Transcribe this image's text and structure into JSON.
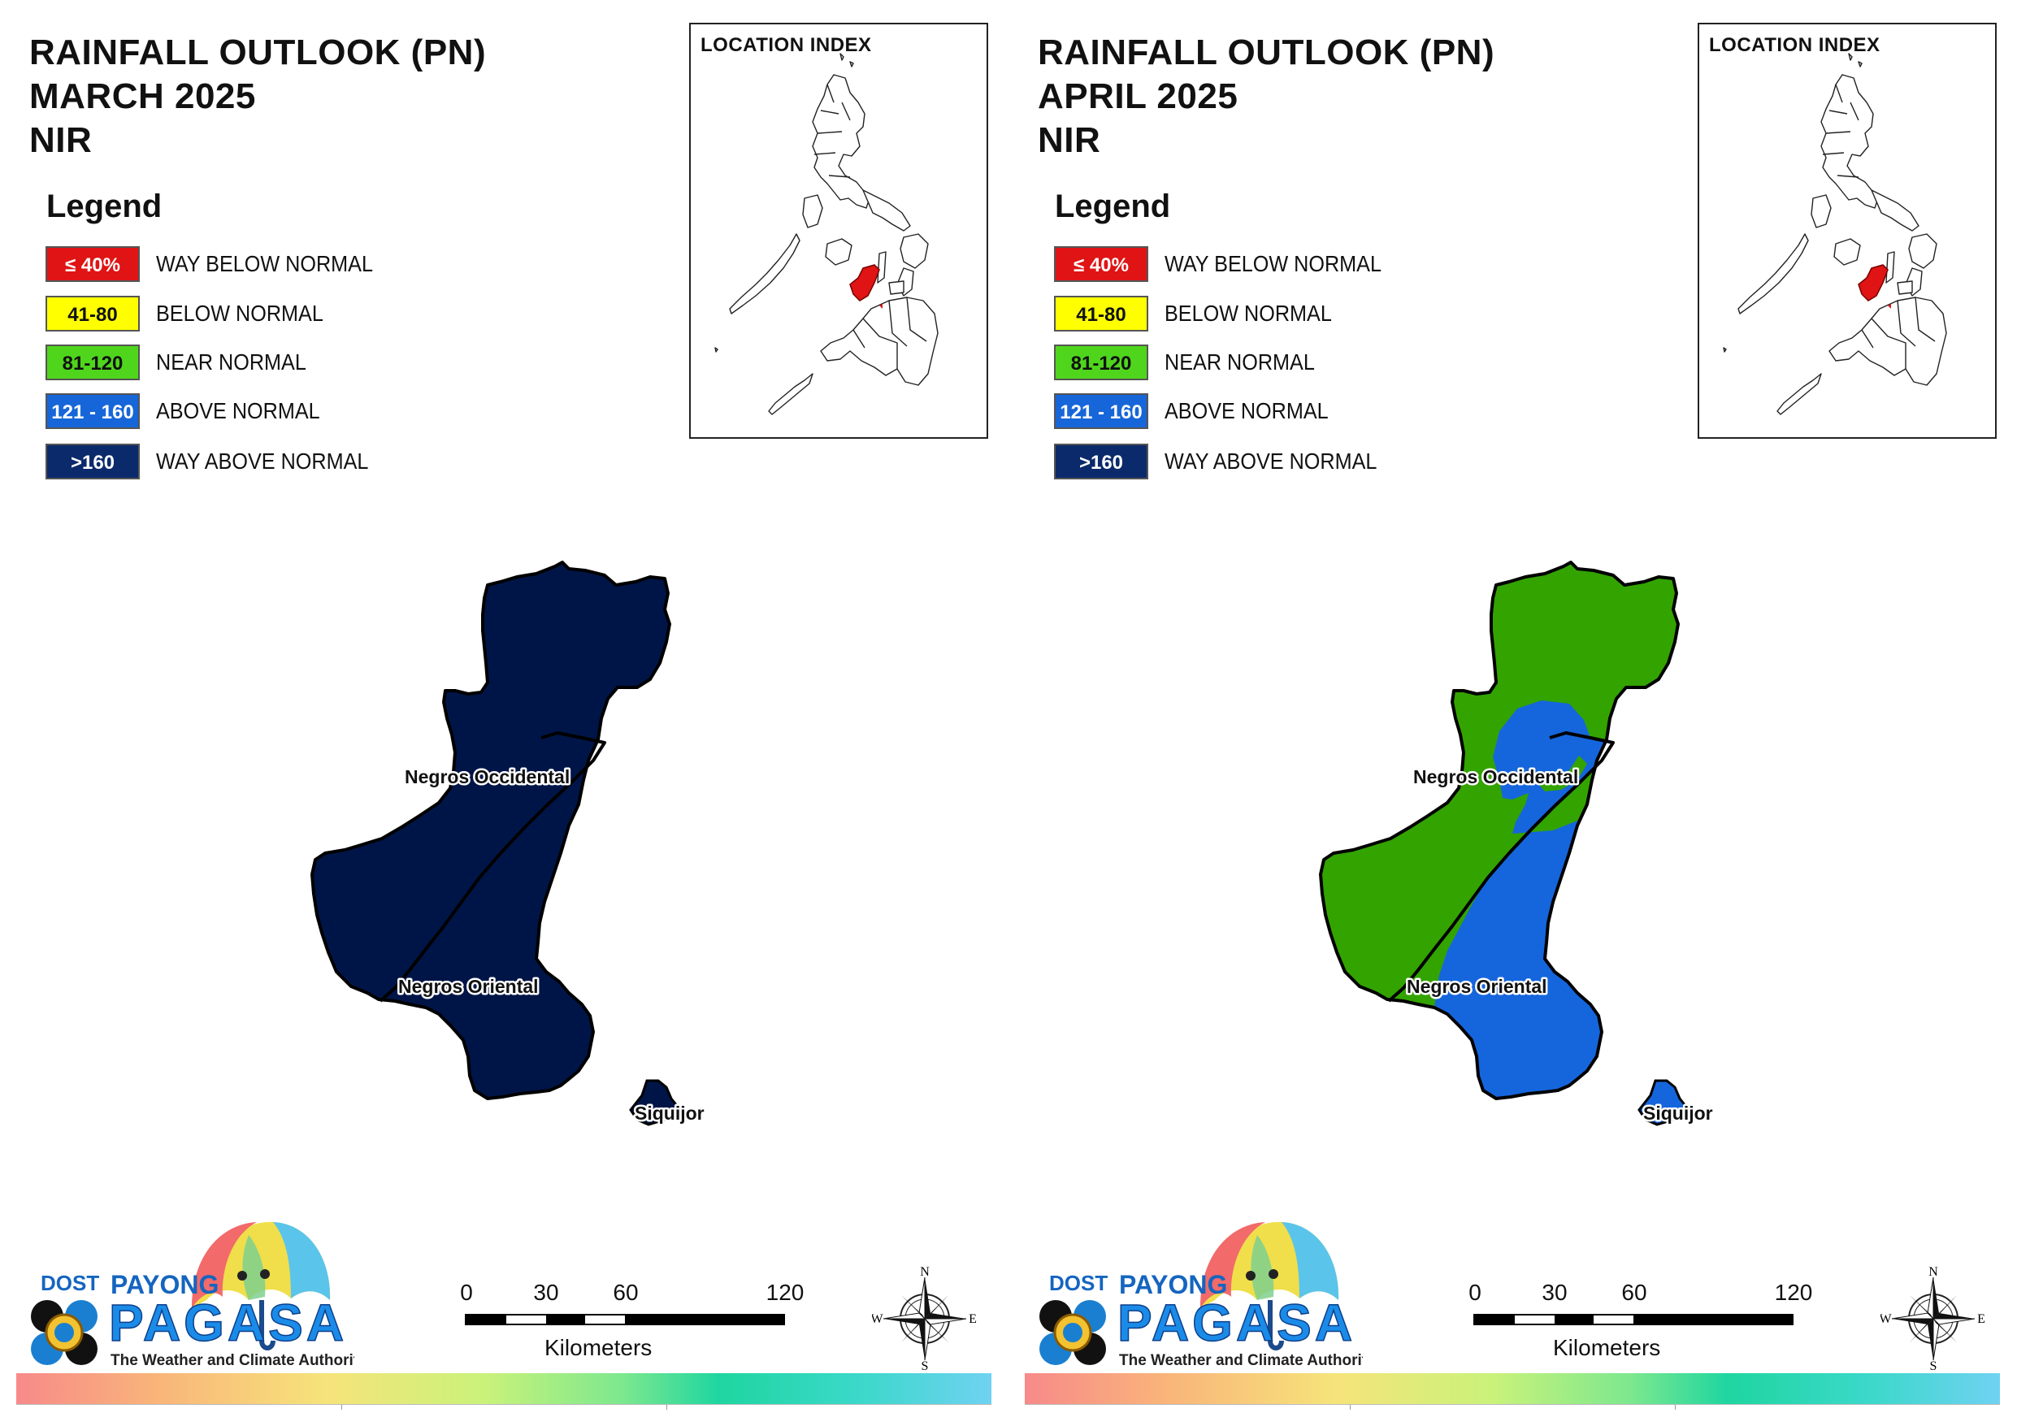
{
  "panels": [
    {
      "title": {
        "line1": "RAINFALL OUTLOOK (PN)",
        "line2": "MARCH 2025",
        "line3": "NIR"
      },
      "location_index_title": "LOCATION INDEX",
      "legend": {
        "title": "Legend",
        "items": [
          {
            "code": "≤ 40%",
            "label": "WAY BELOW NORMAL",
            "color": "#e01414",
            "text_color": "#ffffff"
          },
          {
            "code": "41-80",
            "label": "BELOW NORMAL",
            "color": "#ffff00",
            "text_color": "#111111"
          },
          {
            "code": "81-120",
            "label": "NEAR NORMAL",
            "color": "#4fd61c",
            "text_color": "#111111"
          },
          {
            "code": "121 - 160",
            "label": "ABOVE NORMAL",
            "color": "#1766d9",
            "text_color": "#ffffff"
          },
          {
            "code": ">160",
            "label": "WAY ABOVE NORMAL",
            "color": "#0b2a6b",
            "text_color": "#ffffff"
          }
        ]
      },
      "map": {
        "provinces": [
          "Negros Occidental",
          "Negros Oriental",
          "Siquijor"
        ],
        "fill_main": "#001547",
        "fill_secondary": "#001547",
        "fill_siquijor": "#001547"
      },
      "logo": {
        "agency": "DOST",
        "brand_line1": "PAYONG",
        "brand_line2": "PAGASA",
        "tagline": "The Weather and Climate Authority"
      },
      "scale": {
        "ticks": [
          "0",
          "30",
          "60",
          "120"
        ],
        "unit": "Kilometers"
      },
      "compass": {
        "n": "N",
        "e": "E",
        "s": "S",
        "w": "W"
      }
    },
    {
      "title": {
        "line1": "RAINFALL OUTLOOK (PN)",
        "line2": "APRIL 2025",
        "line3": "NIR"
      },
      "location_index_title": "LOCATION INDEX",
      "legend": {
        "title": "Legend",
        "items": [
          {
            "code": "≤ 40%",
            "label": "WAY BELOW NORMAL",
            "color": "#e01414",
            "text_color": "#ffffff"
          },
          {
            "code": "41-80",
            "label": "BELOW NORMAL",
            "color": "#ffff00",
            "text_color": "#111111"
          },
          {
            "code": "81-120",
            "label": "NEAR NORMAL",
            "color": "#4fd61c",
            "text_color": "#111111"
          },
          {
            "code": "121 - 160",
            "label": "ABOVE NORMAL",
            "color": "#1766d9",
            "text_color": "#ffffff"
          },
          {
            "code": ">160",
            "label": "WAY ABOVE NORMAL",
            "color": "#0b2a6b",
            "text_color": "#ffffff"
          }
        ]
      },
      "map": {
        "provinces": [
          "Negros Occidental",
          "Negros Oriental",
          "Siquijor"
        ],
        "fill_main": "#33a300",
        "fill_secondary": "#1566dd",
        "fill_siquijor": "#1566dd"
      },
      "logo": {
        "agency": "DOST",
        "brand_line1": "PAYONG",
        "brand_line2": "PAGASA",
        "tagline": "The Weather and Climate Authority"
      },
      "scale": {
        "ticks": [
          "0",
          "30",
          "60",
          "120"
        ],
        "unit": "Kilometers"
      },
      "compass": {
        "n": "N",
        "e": "E",
        "s": "S",
        "w": "W"
      }
    }
  ]
}
